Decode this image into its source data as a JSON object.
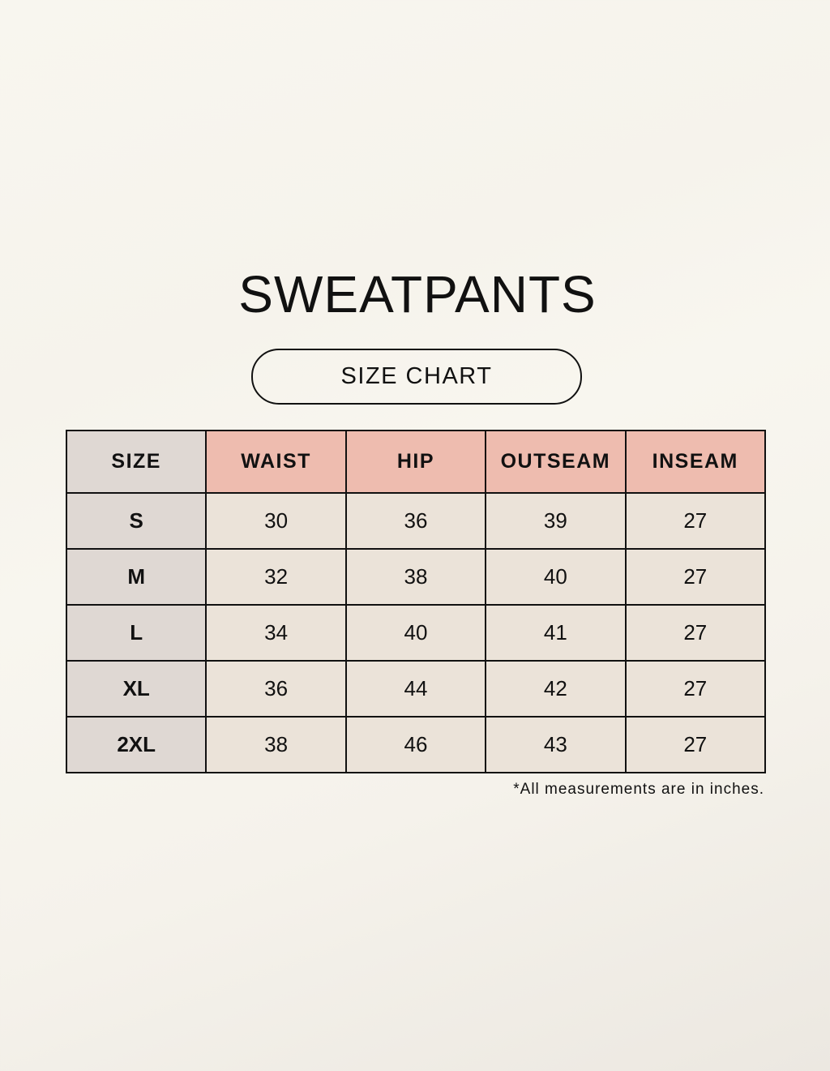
{
  "title": "SWEATPANTS",
  "subtitle": "SIZE CHART",
  "table": {
    "headers": [
      "SIZE",
      "WAIST",
      "HIP",
      "OUTSEAM",
      "INSEAM"
    ],
    "rows": [
      [
        "S",
        "30",
        "36",
        "39",
        "27"
      ],
      [
        "M",
        "32",
        "38",
        "40",
        "27"
      ],
      [
        "L",
        "34",
        "40",
        "41",
        "27"
      ],
      [
        "XL",
        "36",
        "44",
        "42",
        "27"
      ],
      [
        "2XL",
        "38",
        "46",
        "43",
        "27"
      ]
    ]
  },
  "note": "*All measurements are in inches.",
  "colors": {
    "header": "#eebcaf",
    "size_column": "#dfd8d3",
    "cell": "#ebe3d9",
    "background": "#f8f6ef"
  }
}
